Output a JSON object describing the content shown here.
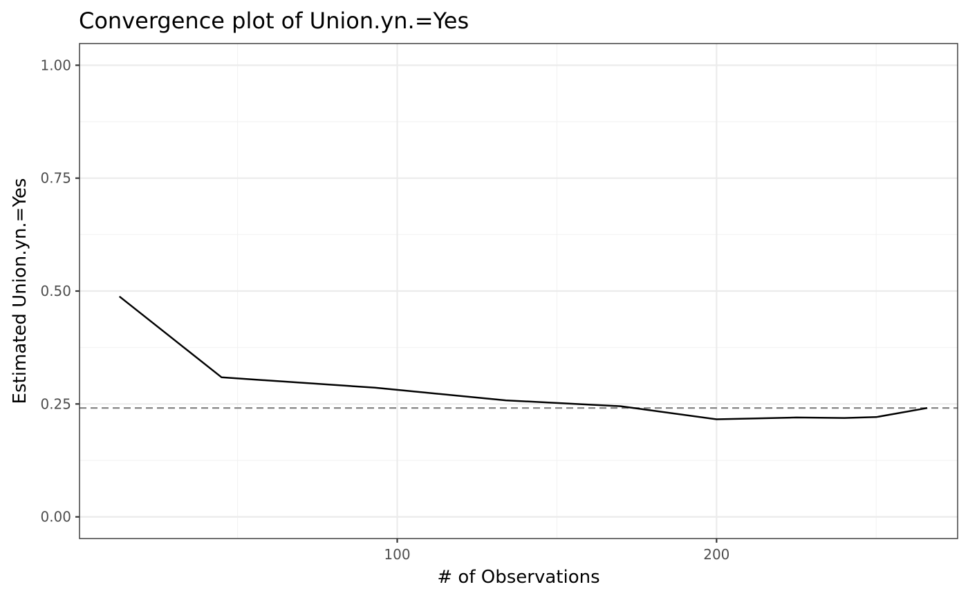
{
  "chart_data": {
    "type": "line",
    "title": "Convergence plot of Union.yn.=Yes",
    "xlabel": "# of Observations",
    "ylabel": "Estimated Union.yn.=Yes",
    "xlim": [
      0.5,
      275.5
    ],
    "ylim": [
      -0.048,
      1.048
    ],
    "x_ticks": [
      100,
      200
    ],
    "x_tick_labels": [
      "100",
      "200"
    ],
    "x_minor_ticks": [
      50,
      150,
      250
    ],
    "y_ticks": [
      0,
      0.25,
      0.5,
      0.75,
      1
    ],
    "y_tick_labels": [
      "0.00",
      "0.25",
      "0.50",
      "0.75",
      "1.00"
    ],
    "y_minor_ticks": [
      0.125,
      0.375,
      0.625,
      0.875
    ],
    "grid": true,
    "legend": "none",
    "series": [
      {
        "x": [
          13,
          45,
          93,
          134,
          170,
          200,
          225,
          240,
          250,
          266
        ],
        "y": [
          0.488,
          0.309,
          0.286,
          0.258,
          0.245,
          0.216,
          0.22,
          0.219,
          0.221,
          0.241
        ],
        "color": "#000000",
        "style": "solid"
      }
    ],
    "reference_line": {
      "y": 0.241,
      "color": "#7f7f7f",
      "style": "dashed"
    }
  }
}
